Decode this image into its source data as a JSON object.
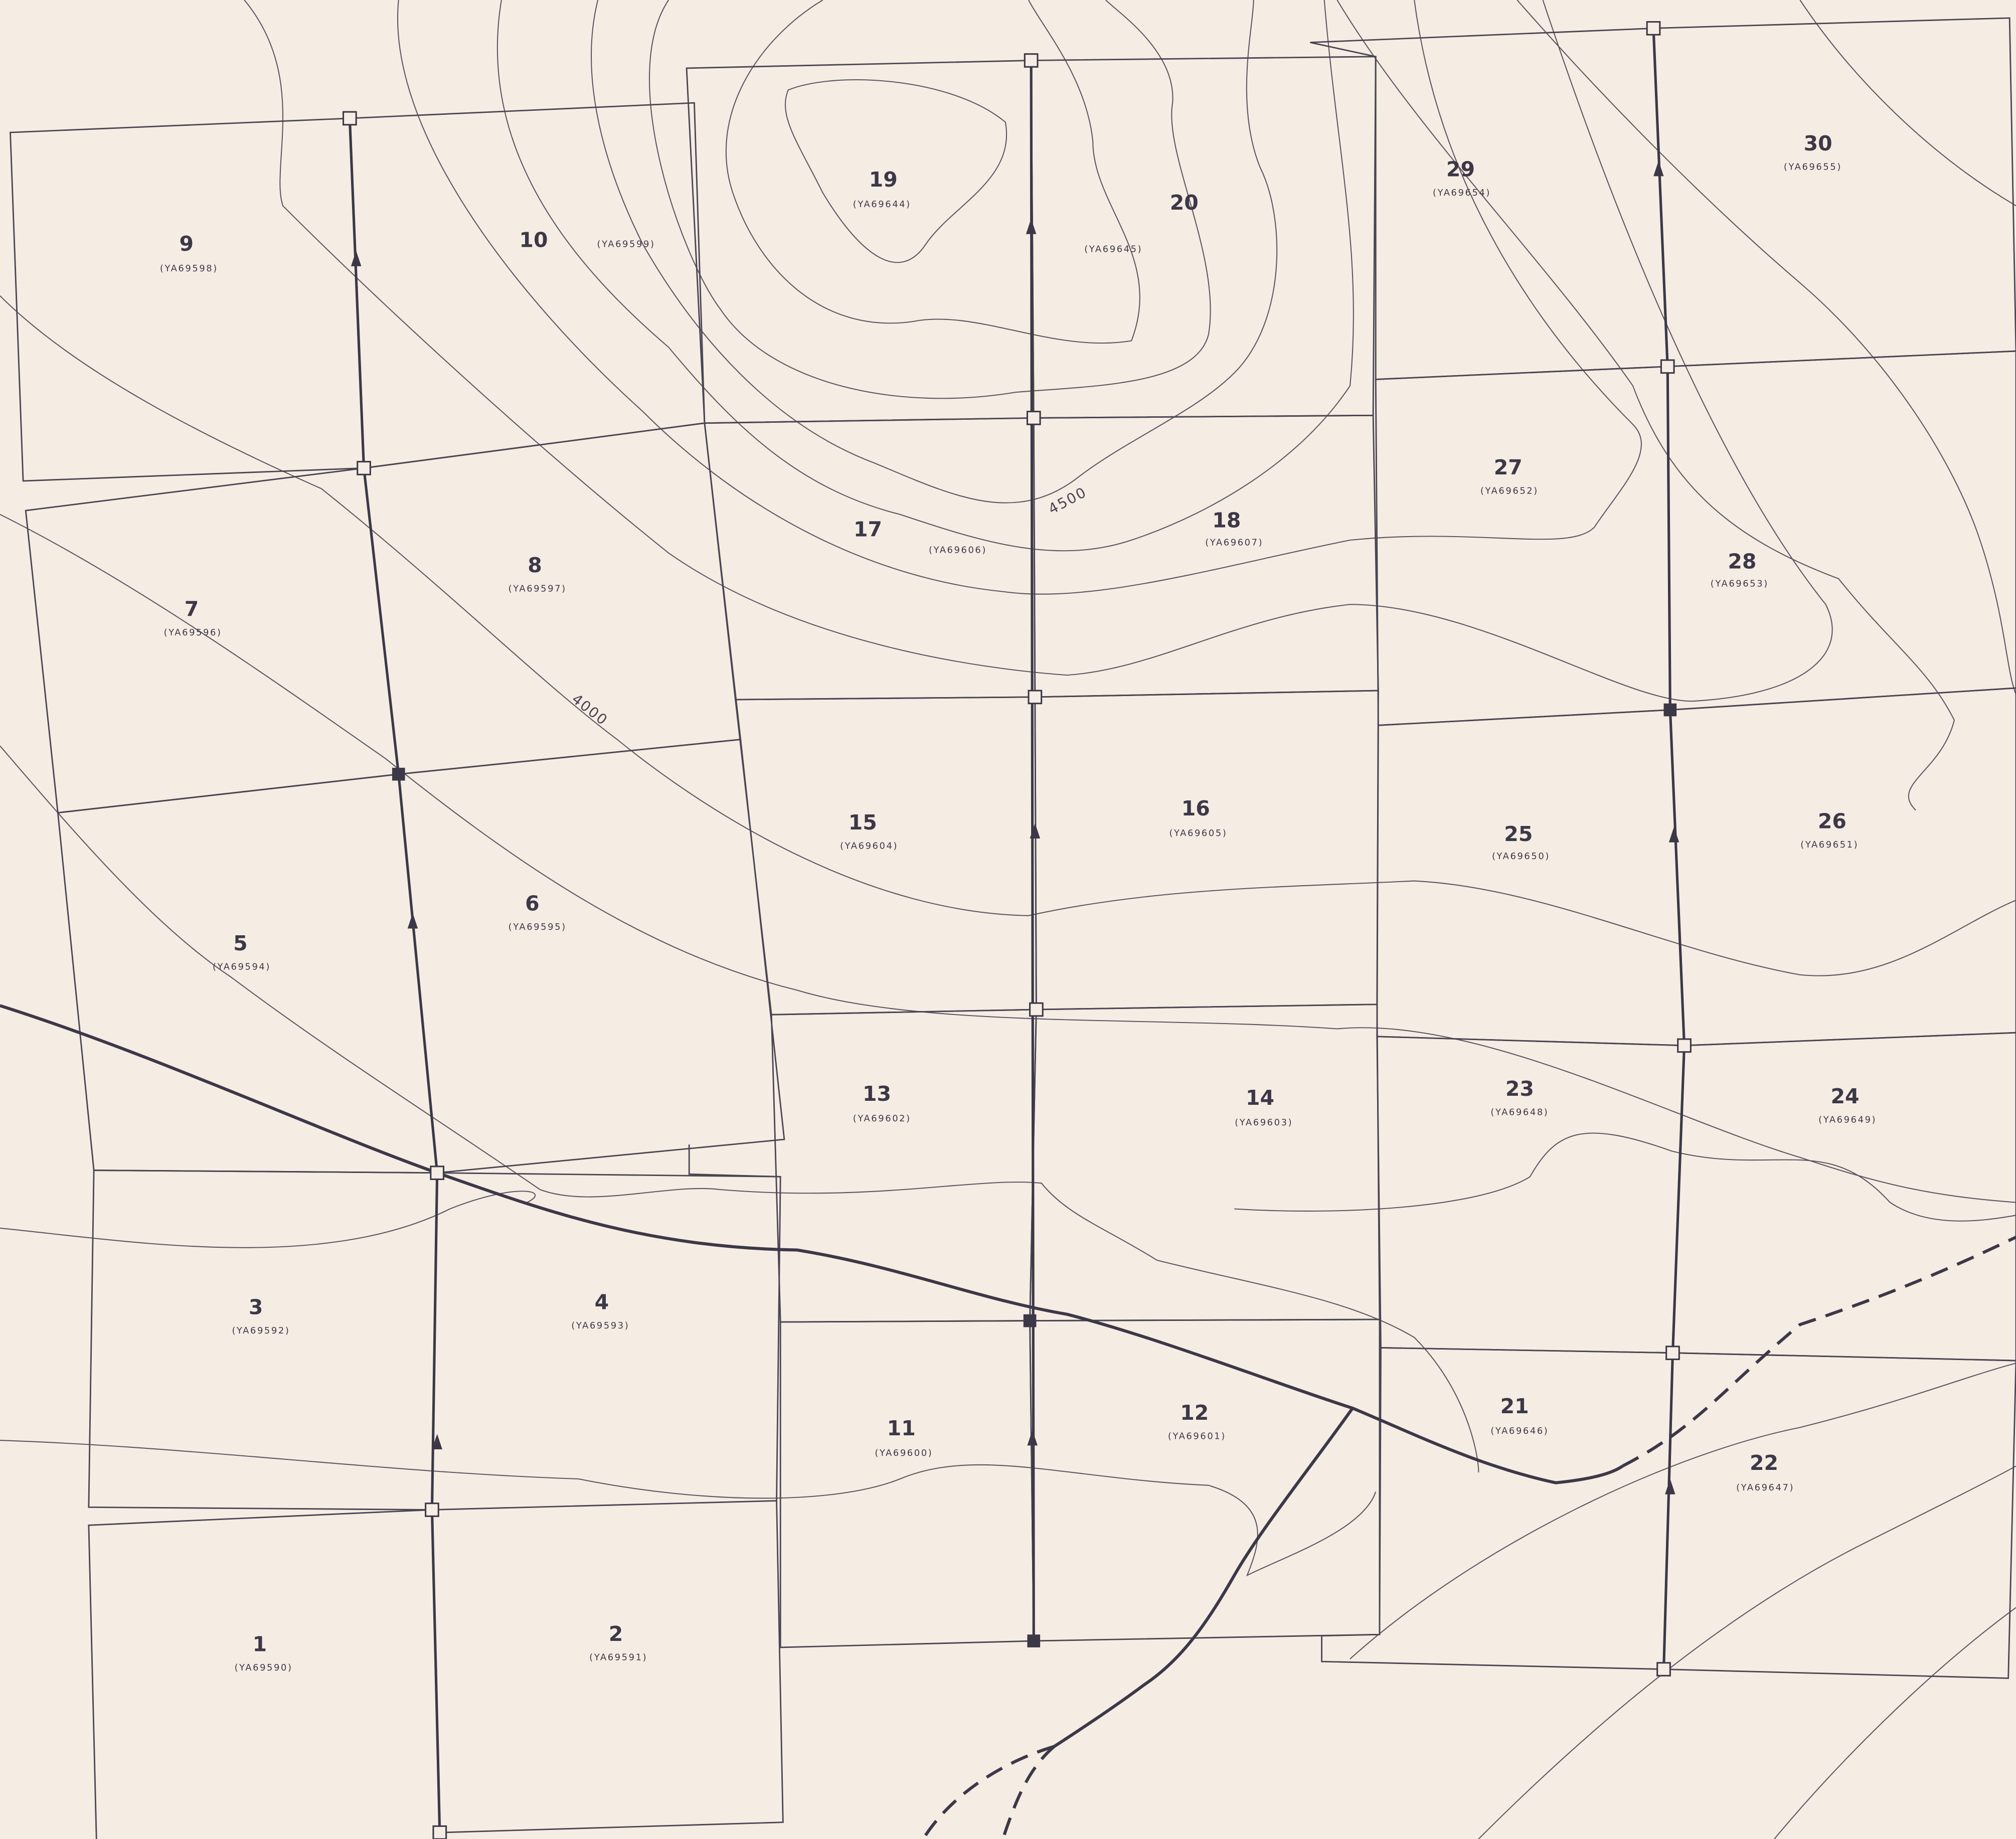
{
  "map": {
    "frames": [
      {
        "number": "1",
        "id": "(YA69590)"
      },
      {
        "number": "2",
        "id": "(YA69591)"
      },
      {
        "number": "3",
        "id": "(YA69592)"
      },
      {
        "number": "4",
        "id": "(YA69593)"
      },
      {
        "number": "5",
        "id": "(YA69594)"
      },
      {
        "number": "6",
        "id": "(YA69595)"
      },
      {
        "number": "7",
        "id": "(YA69596)"
      },
      {
        "number": "8",
        "id": "(YA69597)"
      },
      {
        "number": "9",
        "id": "(YA69598)"
      },
      {
        "number": "10",
        "id": "(YA69599)"
      },
      {
        "number": "11",
        "id": "(YA69600)"
      },
      {
        "number": "12",
        "id": "(YA69601)"
      },
      {
        "number": "13",
        "id": "(YA69602)"
      },
      {
        "number": "14",
        "id": "(YA69603)"
      },
      {
        "number": "15",
        "id": "(YA69604)"
      },
      {
        "number": "16",
        "id": "(YA69605)"
      },
      {
        "number": "17",
        "id": "(YA69606)"
      },
      {
        "number": "18",
        "id": "(YA69607)"
      },
      {
        "number": "19",
        "id": "(YA69644)"
      },
      {
        "number": "20",
        "id": "(YA69645)"
      },
      {
        "number": "21",
        "id": "(YA69646)"
      },
      {
        "number": "22",
        "id": "(YA69647)"
      },
      {
        "number": "23",
        "id": "(YA69648)"
      },
      {
        "number": "24",
        "id": "(YA69649)"
      },
      {
        "number": "25",
        "id": "(YA69650)"
      },
      {
        "number": "26",
        "id": "(YA69651)"
      },
      {
        "number": "27",
        "id": "(YA69652)"
      },
      {
        "number": "28",
        "id": "(YA69653)"
      },
      {
        "number": "29",
        "id": "(YA69654)"
      },
      {
        "number": "30",
        "id": "(YA69655)"
      }
    ],
    "contour_labels": [
      "4500",
      "4000"
    ]
  }
}
